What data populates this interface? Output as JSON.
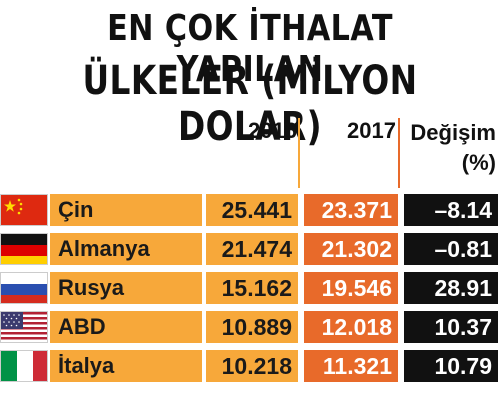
{
  "title": {
    "line1": "EN ÇOK İTHALAT YAPILAN",
    "line2": "ÜLKELER (MİLYON DOLAR)"
  },
  "headers": {
    "year1": "2016",
    "year2": "2017",
    "change_line1": "Değişim",
    "change_line2": "(%)"
  },
  "colors": {
    "year1_bar": "#f7a83a",
    "year2_bar": "#e86a2a",
    "change_bar": "#111111"
  },
  "chart_data": {
    "type": "table",
    "title": "EN ÇOK İTHALAT YAPILAN ÜLKELER (MİLYON DOLAR)",
    "columns": [
      "2016",
      "2017",
      "Değişim (%)"
    ],
    "rows": [
      {
        "country": "Çin",
        "flag": "china-flag-icon",
        "v2016": "25.441",
        "v2017": "23.371",
        "change": "-8.14"
      },
      {
        "country": "Almanya",
        "flag": "germany-flag-icon",
        "v2016": "21.474",
        "v2017": "21.302",
        "change": "-0.81"
      },
      {
        "country": "Rusya",
        "flag": "russia-flag-icon",
        "v2016": "15.162",
        "v2017": "19.546",
        "change": "28.91"
      },
      {
        "country": "ABD",
        "flag": "usa-flag-icon",
        "v2016": "10.889",
        "v2017": "12.018",
        "change": "10.37"
      },
      {
        "country": "İtalya",
        "flag": "italy-flag-icon",
        "v2016": "10.218",
        "v2017": "11.321",
        "change": "10.79"
      }
    ]
  }
}
